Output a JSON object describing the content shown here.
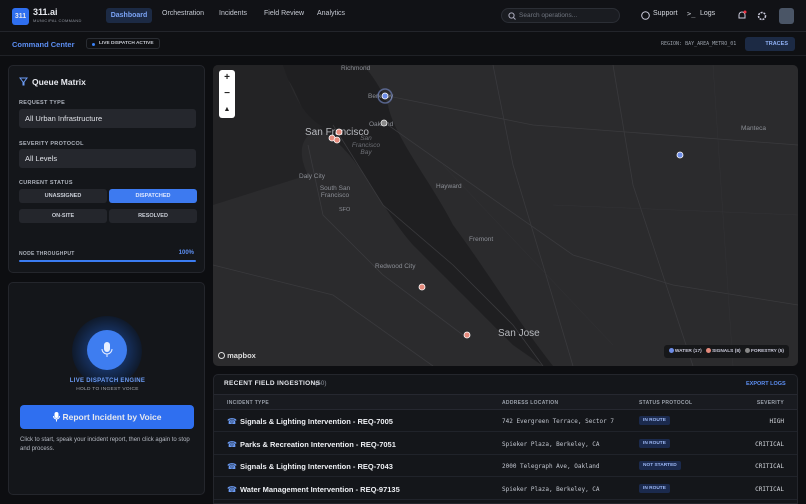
{
  "header": {
    "logo": "311",
    "brand": "311.ai",
    "subtitle": "MUNICIPAL COMMAND",
    "nav": [
      "Dashboard",
      "Orchestration",
      "Incidents",
      "Field Review",
      "Analytics"
    ],
    "search_placeholder": "Search operations...",
    "support": "Support",
    "logs": "Logs"
  },
  "subheader": {
    "title": "Command Center",
    "status": "LIVE DISPATCH ACTIVE",
    "region": "REGION: BAY_AREA_METRO_01",
    "traces": "TRACES"
  },
  "queue_matrix": {
    "title": "Queue Matrix",
    "request_type_label": "REQUEST TYPE",
    "request_type": "All Urban Infrastructure",
    "severity_label": "SEVERITY PROTOCOL",
    "severity": "All Levels",
    "status_label": "CURRENT STATUS",
    "status_buttons": [
      "UNASSIGNED",
      "DISPATCHED",
      "ON-SITE",
      "RESOLVED"
    ],
    "throughput_label": "NODE THROUGHPUT",
    "throughput": "100%"
  },
  "voice": {
    "engine": "LIVE DISPATCH ENGINE",
    "hint": "HOLD TO INGEST VOICE",
    "button": "Report Incident by Voice",
    "instructions": "Click to start, speak your incident report, then click again to stop and process."
  },
  "map": {
    "places": [
      "Richmond",
      "Berkeley",
      "Oakland",
      "San Francisco",
      "San Francisco Bay",
      "Daly City",
      "South San Francisco",
      "SFO",
      "Hayward",
      "Fremont",
      "Redwood City",
      "San Jose",
      "Manteca"
    ],
    "attribution": "mapbox",
    "legend": [
      "WATER (17)",
      "SIGNALS (8)",
      "FORESTRY (5)"
    ]
  },
  "table": {
    "title": "RECENT FIELD INGESTIONS",
    "count": "(50)",
    "export": "EXPORT LOGS",
    "columns": [
      "INCIDENT TYPE",
      "ADDRESS LOCATION",
      "STATUS PROTOCOL",
      "SEVERITY"
    ],
    "rows": [
      [
        "Signals & Lighting Intervention - REQ-7005",
        "742 Evergreen Terrace, Sector 7",
        "IN ROUTE",
        "HIGH"
      ],
      [
        "Parks & Recreation Intervention - REQ-7051",
        "Spieker Plaza, Berkeley, CA",
        "IN ROUTE",
        "CRITICAL"
      ],
      [
        "Signals & Lighting Intervention - REQ-7043",
        "2000 Telegraph Ave, Oakland",
        "NOT STARTED",
        "CRITICAL"
      ],
      [
        "Water Management Intervention - REQ-97135",
        "Spieker Plaza, Berkeley, CA",
        "IN ROUTE",
        "CRITICAL"
      ]
    ]
  }
}
